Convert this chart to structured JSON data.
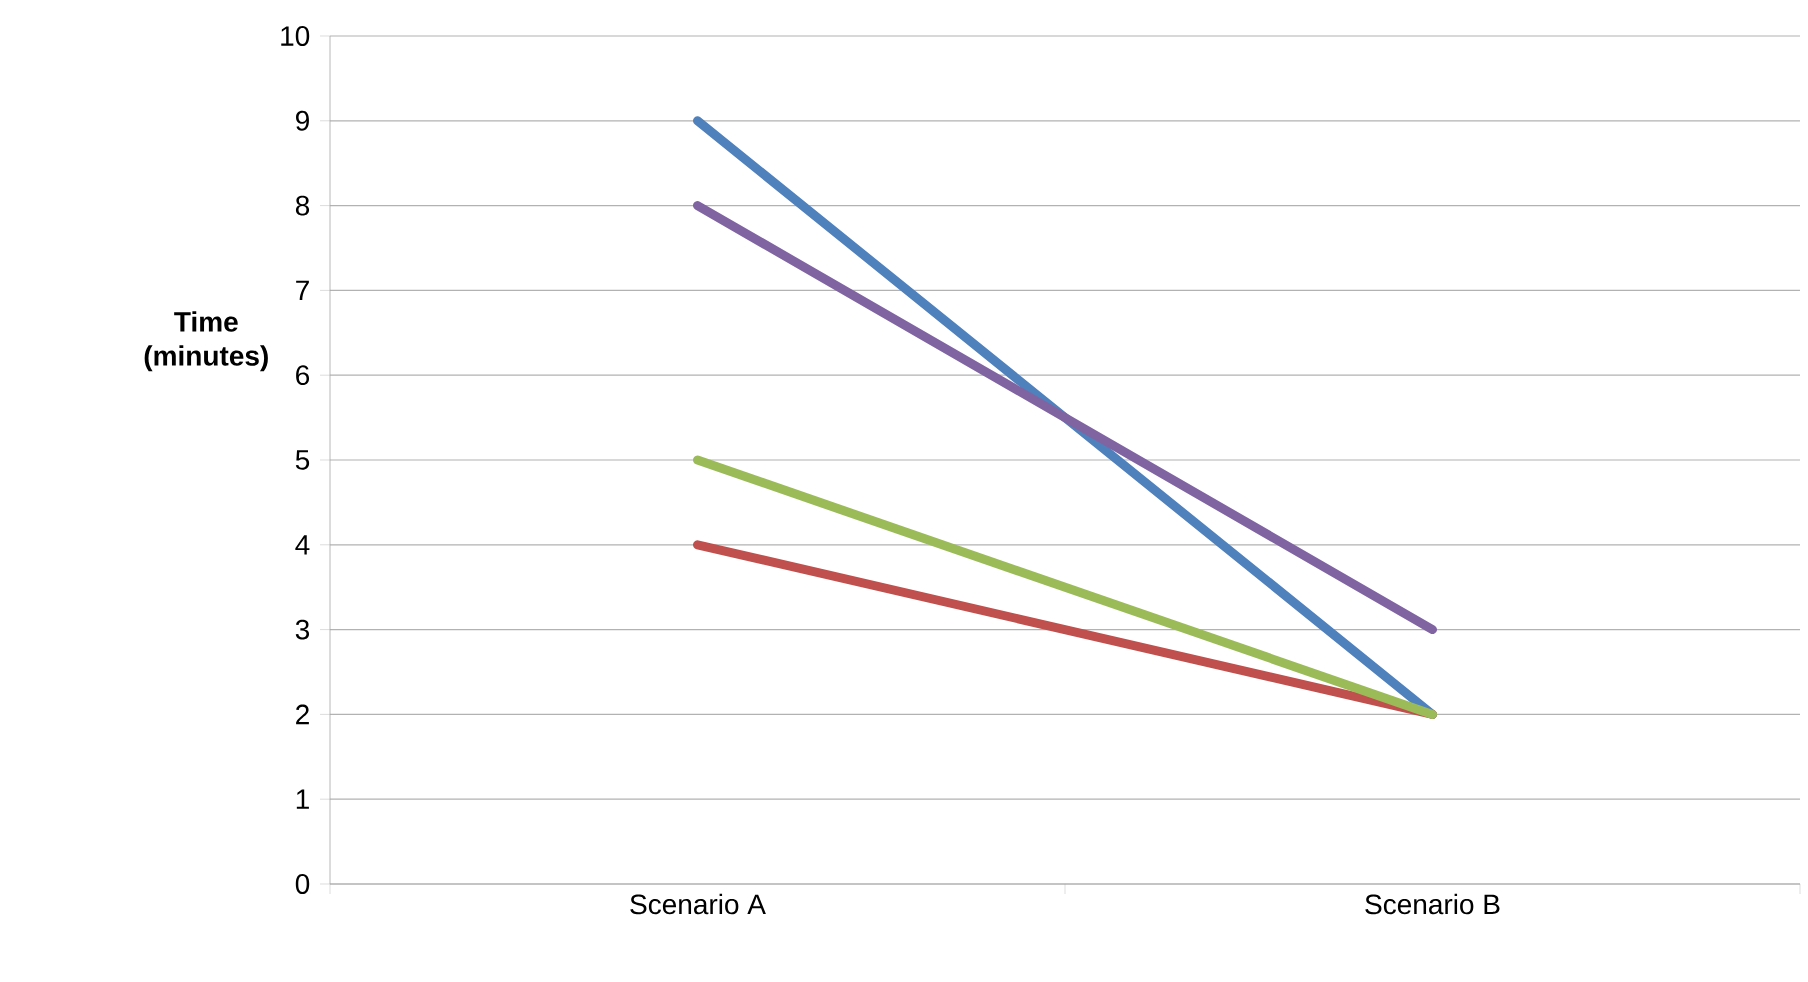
{
  "chart_data": {
    "type": "line",
    "ylabel": "Time (minutes)",
    "categories": [
      "Scenario A",
      "Scenario B"
    ],
    "series": [
      {
        "color": "#4f81bd",
        "values": [
          9,
          2
        ]
      },
      {
        "color": "#c0504d",
        "values": [
          4,
          2
        ]
      },
      {
        "color": "#9bbb59",
        "values": [
          5,
          2
        ]
      },
      {
        "color": "#8064a2",
        "values": [
          8,
          3
        ]
      }
    ],
    "ylim": [
      0,
      10
    ],
    "yticks": [
      0,
      1,
      2,
      3,
      4,
      5,
      6,
      7,
      8,
      9,
      10
    ],
    "grid": "y",
    "marker": "none",
    "line_style": "solid"
  }
}
